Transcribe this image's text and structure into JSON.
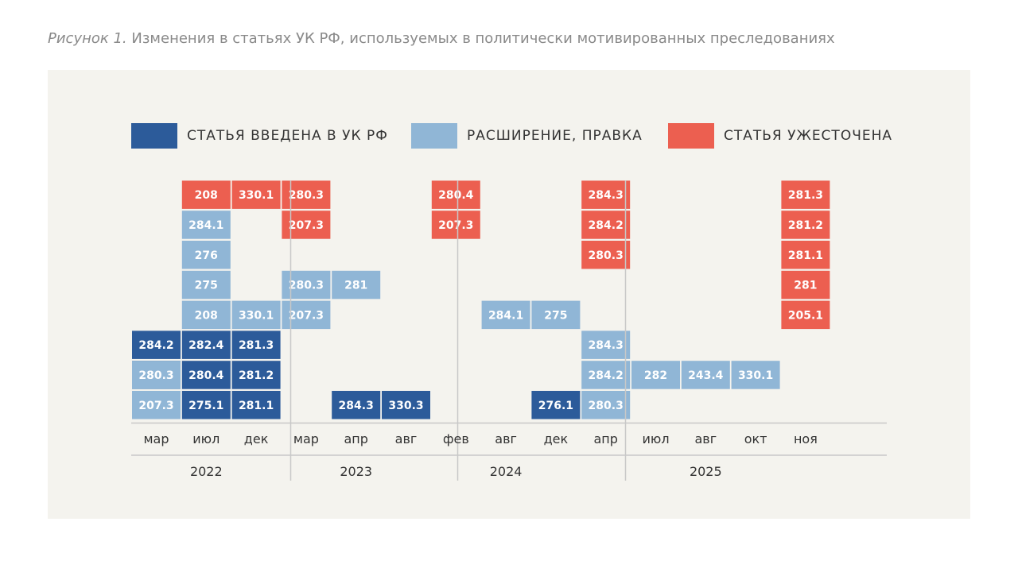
{
  "caption": {
    "label": "Рисунок 1.",
    "text": "Изменения в статьях УК РФ, используемых в политически мотивированных преследованиях"
  },
  "colors": {
    "introduced": "#2c5b9a",
    "expanded": "#90b6d6",
    "tightened": "#ec5f50"
  },
  "legend": [
    {
      "key": "introduced",
      "label": "СТАТЬЯ ВВЕДЕНА В УК РФ"
    },
    {
      "key": "expanded",
      "label": "РАСШИРЕНИЕ, ПРАВКА"
    },
    {
      "key": "tightened",
      "label": "СТАТЬЯ УЖЕСТОЧЕНА"
    }
  ],
  "chart_data": {
    "type": "table",
    "years": [
      {
        "year": "2022",
        "months": [
          "мар",
          "июл",
          "дек"
        ]
      },
      {
        "year": "2023",
        "months": [
          "мар",
          "апр",
          "авг"
        ]
      },
      {
        "year": "2024",
        "months": [
          "фев",
          "авг",
          "дек"
        ]
      },
      {
        "year": "2025",
        "months": [
          "апр",
          "июл",
          "авг",
          "окт",
          "ноя"
        ]
      }
    ],
    "columns": [
      {
        "year": "2022",
        "month": "мар",
        "introduced": [
          "207.3",
          "280.3",
          "284.2"
        ],
        "expanded": [
          "207.3",
          "280.3"
        ],
        "tightened": []
      },
      {
        "year": "2022",
        "month": "июл",
        "introduced": [
          "275.1",
          "280.4",
          "282.4"
        ],
        "expanded": [
          "208",
          "275",
          "276",
          "284.1"
        ],
        "tightened": [
          "208"
        ]
      },
      {
        "year": "2022",
        "month": "дек",
        "introduced": [
          "281.1",
          "281.2",
          "281.3"
        ],
        "expanded": [
          "330.1"
        ],
        "tightened": [
          "330.1"
        ]
      },
      {
        "year": "2023",
        "month": "мар",
        "introduced": [],
        "expanded": [
          "207.3",
          "280.3"
        ],
        "tightened": [
          "207.3",
          "280.3"
        ]
      },
      {
        "year": "2023",
        "month": "апр",
        "introduced": [
          "284.3"
        ],
        "expanded": [
          "281"
        ],
        "tightened": []
      },
      {
        "year": "2023",
        "month": "авг",
        "introduced": [
          "330.3"
        ],
        "expanded": [],
        "tightened": []
      },
      {
        "year": "2024",
        "month": "фев",
        "introduced": [],
        "expanded": [],
        "tightened": [
          "207.3",
          "280.4"
        ]
      },
      {
        "year": "2024",
        "month": "авг",
        "introduced": [],
        "expanded": [
          "284.1"
        ],
        "tightened": []
      },
      {
        "year": "2024",
        "month": "дек",
        "introduced": [
          "276.1"
        ],
        "expanded": [
          "275"
        ],
        "tightened": []
      },
      {
        "year": "2025",
        "month": "апр",
        "introduced": [],
        "expanded": [
          "280.3",
          "284.2",
          "284.3"
        ],
        "tightened": [
          "280.3",
          "284.2",
          "284.3"
        ]
      },
      {
        "year": "2025",
        "month": "июл",
        "introduced": [],
        "expanded": [
          "282"
        ],
        "tightened": []
      },
      {
        "year": "2025",
        "month": "авг",
        "introduced": [],
        "expanded": [
          "243.4"
        ],
        "tightened": []
      },
      {
        "year": "2025",
        "month": "окт",
        "introduced": [],
        "expanded": [
          "330.1"
        ],
        "tightened": []
      },
      {
        "year": "2025",
        "month": "ноя",
        "introduced": [],
        "expanded": [],
        "tightened": [
          "205.1",
          "281",
          "281.1",
          "281.2",
          "281.3"
        ]
      }
    ]
  }
}
